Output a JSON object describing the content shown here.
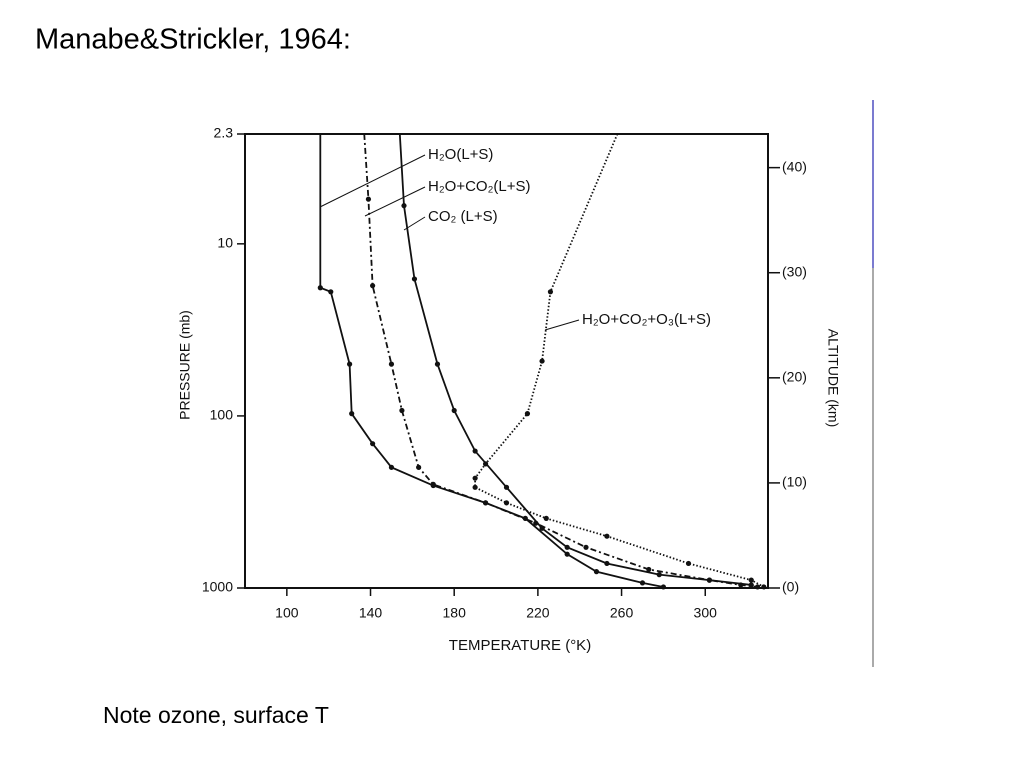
{
  "slide": {
    "title": "Manabe&Strickler, 1964:",
    "note": "Note ozone, surface T"
  },
  "chart_data": {
    "type": "line",
    "x_label": "TEMPERATURE (°K)",
    "y_label": "PRESSURE (mb)",
    "y2_label": "ALTITUDE (km)",
    "xlim": [
      80,
      330
    ],
    "xticks": [
      100,
      140,
      180,
      220,
      260,
      300
    ],
    "ylim": [
      1000,
      2.3
    ],
    "yticks": [
      2.3,
      10,
      100,
      1000
    ],
    "y_scale": "log",
    "y2lim": [
      0,
      43.2
    ],
    "y2ticks": [
      {
        "value": 0,
        "label": "(0)"
      },
      {
        "value": 10,
        "label": "(10)"
      },
      {
        "value": 20,
        "label": "(20)"
      },
      {
        "value": 30,
        "label": "(30)"
      },
      {
        "value": 40,
        "label": "(40)"
      }
    ],
    "series": [
      {
        "name": "H₂O(L+S)",
        "color": "#111111",
        "dash": "none",
        "x": [
          116,
          116,
          121,
          130,
          131,
          141,
          150,
          170,
          195,
          214,
          234,
          248,
          270,
          280
        ],
        "values": [
          2.3,
          18,
          19,
          50,
          97,
          145,
          199,
          254,
          320,
          394,
          636,
          803,
          934,
          986
        ]
      },
      {
        "name": "H₂O+CO₂(L+S)",
        "color": "#111111",
        "dash": "6,3,2,3",
        "x": [
          137,
          139,
          141,
          150,
          155,
          163,
          170,
          195,
          219,
          243,
          273,
          302,
          317,
          325
        ],
        "values": [
          2.3,
          5.5,
          17.5,
          50,
          93,
          199,
          250,
          320,
          420,
          580,
          780,
          900,
          960,
          986
        ]
      },
      {
        "name": "CO₂ (L+S)",
        "color": "#111111",
        "dash": "none",
        "x": [
          154,
          156,
          161,
          172,
          180,
          190,
          205,
          222,
          234,
          253,
          278,
          302,
          322
        ],
        "values": [
          2.3,
          6,
          16,
          50,
          93,
          160,
          260,
          450,
          580,
          720,
          836,
          900,
          960
        ]
      },
      {
        "name": "H₂O+CO₂+O₃(L+S)",
        "color": "#111111",
        "dash": "1.5,2",
        "x": [
          258,
          226,
          222,
          215,
          195,
          190,
          190,
          205,
          224,
          253,
          292,
          322,
          328
        ],
        "values": [
          2.3,
          19,
          48,
          97,
          190,
          230,
          260,
          320,
          394,
          500,
          720,
          900,
          986
        ]
      }
    ]
  }
}
